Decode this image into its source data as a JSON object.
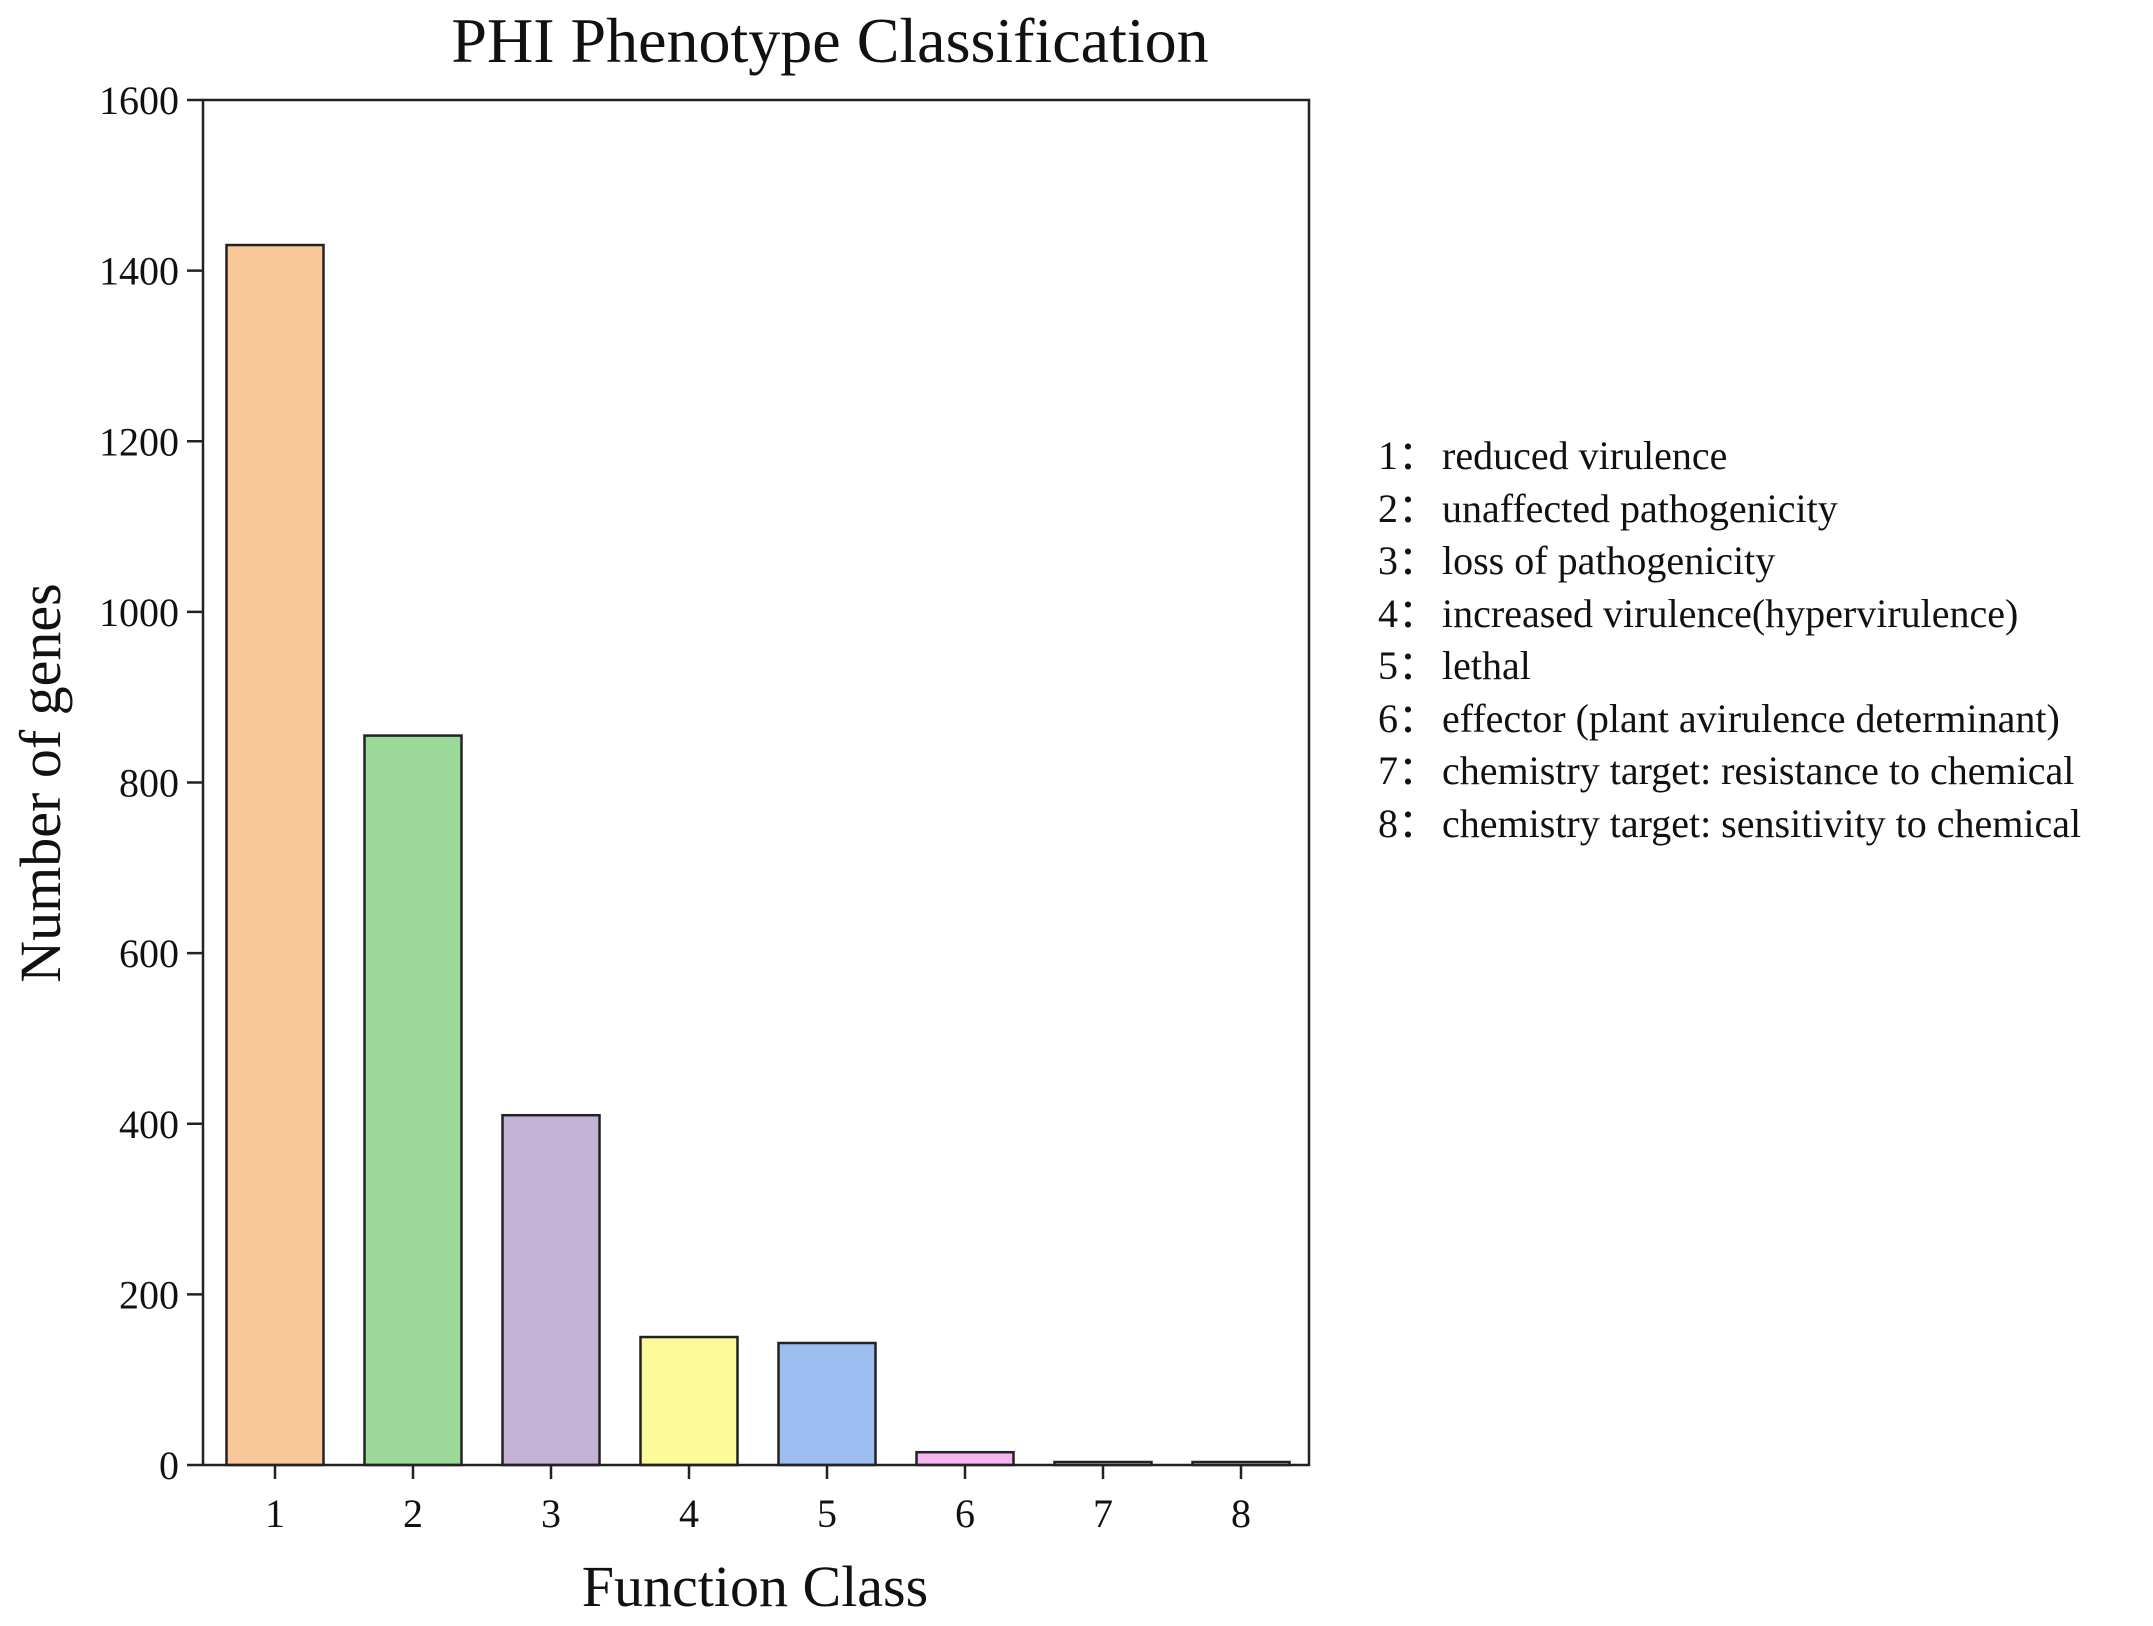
{
  "chart_data": {
    "type": "bar",
    "title": "PHI Phenotype Classification",
    "xlabel": "Function Class",
    "ylabel": "Number of genes",
    "categories": [
      "1",
      "2",
      "3",
      "4",
      "5",
      "6",
      "7",
      "8"
    ],
    "values": [
      1430,
      855,
      410,
      150,
      143,
      15,
      2,
      2
    ],
    "colors": [
      "#fac898",
      "#9dd89b",
      "#c3b1d6",
      "#fdfa9c",
      "#9dbdf1",
      "#f5b5f0",
      "#ffffff",
      "#ffffff"
    ],
    "ylim": [
      0,
      1600
    ],
    "yticks": [
      0,
      200,
      400,
      600,
      800,
      1000,
      1200,
      1400,
      1600
    ],
    "grid": false,
    "legend_position": "right"
  },
  "legend": {
    "items": [
      {
        "num": "1：",
        "text": "reduced virulence"
      },
      {
        "num": "2：",
        "text": "unaffected pathogenicity"
      },
      {
        "num": "3：",
        "text": "loss of pathogenicity"
      },
      {
        "num": "4：",
        "text": "increased virulence(hypervirulence)"
      },
      {
        "num": "5：",
        "text": "lethal"
      },
      {
        "num": "6：",
        "text": "effector (plant avirulence determinant)"
      },
      {
        "num": "7：",
        "text": "chemistry target: resistance to chemical"
      },
      {
        "num": "8：",
        "text": "chemistry target: sensitivity to chemical"
      }
    ]
  }
}
